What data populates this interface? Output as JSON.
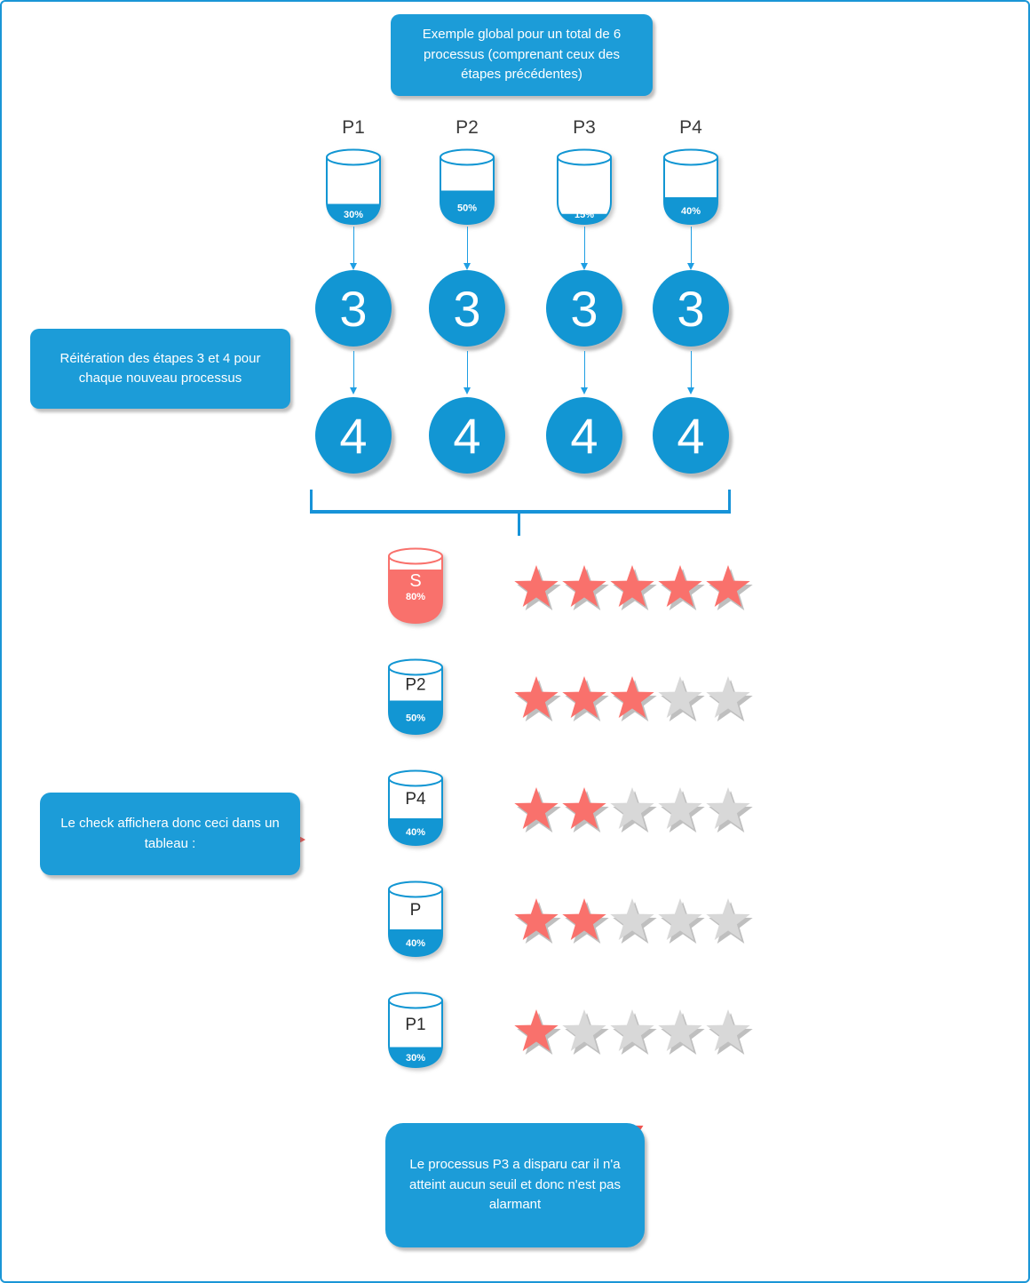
{
  "colors": {
    "blue_fill": "#1296D3",
    "blue_box": "#1C9CD8",
    "arrow": "#1E9EE3",
    "bracket": "#1793D8",
    "border": "#1A96D6",
    "salmon": "#F9716C",
    "star_gray": "#D8D8D8",
    "shadow_gray": "#BFBFBF",
    "label_dark": "#3B3B3B",
    "tick_red": "#F0534F"
  },
  "notes": {
    "top": "Exemple global pour un total de 6 processus (comprenant ceux des étapes précédentes)",
    "reiteration": "Réitération des étapes 3 et 4 pour chaque nouveau processus",
    "table": "Le check affichera donc ceci dans un tableau :",
    "bottom": "Le processus P3 a disparu car il n'a atteint aucun seuil et donc n'est pas alarmant"
  },
  "processes": [
    {
      "label": "P1",
      "percent": 30,
      "percent_label": "30%",
      "step1": "3",
      "step2": "4",
      "color": "blue"
    },
    {
      "label": "P2",
      "percent": 50,
      "percent_label": "50%",
      "step1": "3",
      "step2": "4",
      "color": "blue"
    },
    {
      "label": "P3",
      "percent": 15,
      "percent_label": "15%",
      "step1": "3",
      "step2": "4",
      "color": "blue"
    },
    {
      "label": "P4",
      "percent": 40,
      "percent_label": "40%",
      "step1": "3",
      "step2": "4",
      "color": "blue"
    }
  ],
  "stars_total": 5,
  "table_rows": [
    {
      "label": "S",
      "percent": 80,
      "percent_label": "80%",
      "stars": 5,
      "color": "salmon",
      "label_in_fill": true
    },
    {
      "label": "P2",
      "percent": 50,
      "percent_label": "50%",
      "stars": 3,
      "color": "blue"
    },
    {
      "label": "P4",
      "percent": 40,
      "percent_label": "40%",
      "stars": 2,
      "color": "blue"
    },
    {
      "label": "P",
      "percent": 40,
      "percent_label": "40%",
      "stars": 2,
      "color": "blue"
    },
    {
      "label": "P1",
      "percent": 30,
      "percent_label": "30%",
      "stars": 1,
      "color": "blue"
    }
  ]
}
